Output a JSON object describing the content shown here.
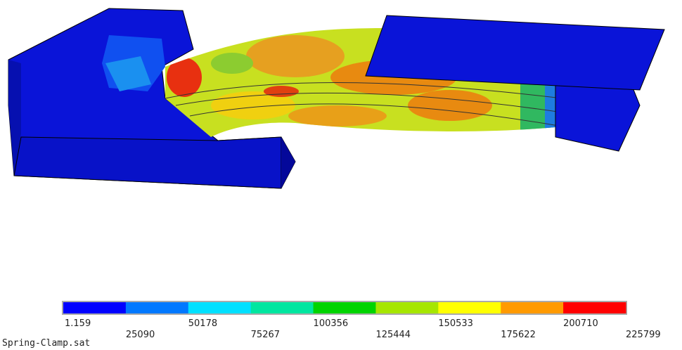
{
  "legend": {
    "colors": [
      "#0000ff",
      "#0078ff",
      "#00e0ff",
      "#00e6a0",
      "#00d400",
      "#a6e600",
      "#ffff00",
      "#ff9a00",
      "#ff0000"
    ],
    "labels": [
      1.159,
      25090,
      50178,
      75267,
      100356,
      125444,
      150533,
      175622,
      200710,
      225799
    ]
  },
  "filename": "Spring-Clamp.sat"
}
